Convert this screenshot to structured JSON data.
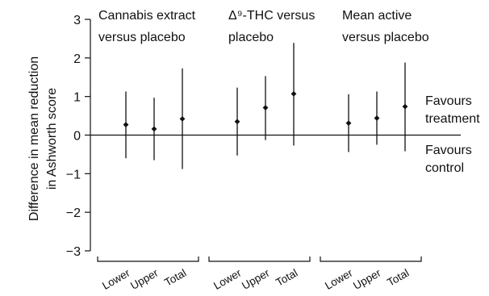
{
  "chart_data": {
    "type": "scatter",
    "subtype": "error-bar",
    "ylabel_lines": [
      "Difference in mean reduction",
      "in Ashworth score"
    ],
    "ylim": [
      -3,
      3
    ],
    "yticks": [
      "3",
      "2",
      "1",
      "0",
      "−1",
      "−2",
      "−3"
    ],
    "zero_line": true,
    "groups": [
      {
        "title_lines": [
          "Cannabis extract",
          "versus placebo"
        ],
        "categories": [
          "Lower",
          "Upper",
          "Total"
        ],
        "estimate": [
          0.27,
          0.16,
          0.42
        ],
        "ci_low": [
          -0.6,
          -0.65,
          -0.88
        ],
        "ci_high": [
          1.13,
          0.97,
          1.73
        ]
      },
      {
        "title_lines": [
          "Δ⁹-THC versus",
          "placebo"
        ],
        "categories": [
          "Lower",
          "Upper",
          "Total"
        ],
        "estimate": [
          0.35,
          0.71,
          1.07
        ],
        "ci_low": [
          -0.53,
          -0.13,
          -0.27
        ],
        "ci_high": [
          1.23,
          1.53,
          2.39
        ]
      },
      {
        "title_lines": [
          "Mean active",
          "versus placebo"
        ],
        "categories": [
          "Lower",
          "Upper",
          "Total"
        ],
        "estimate": [
          0.31,
          0.44,
          0.74
        ],
        "ci_low": [
          -0.44,
          -0.25,
          -0.42
        ],
        "ci_high": [
          1.06,
          1.13,
          1.88
        ]
      }
    ],
    "annotations": [
      {
        "lines": [
          "Favours",
          "treatment"
        ],
        "side": "above-zero"
      },
      {
        "lines": [
          "Favours",
          "control"
        ],
        "side": "below-zero"
      }
    ]
  }
}
